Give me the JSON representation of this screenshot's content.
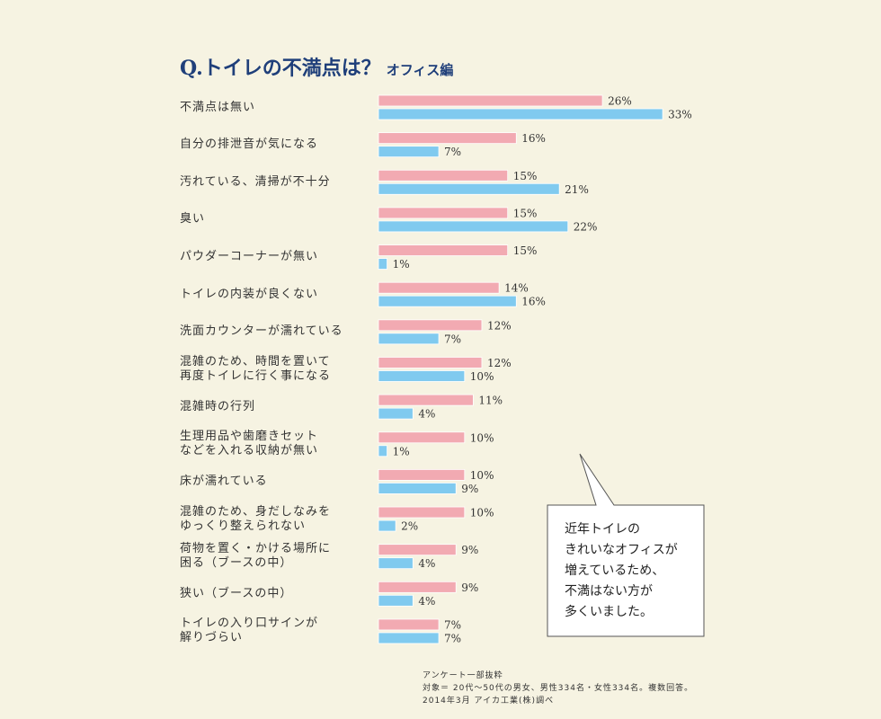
{
  "chart_data": {
    "type": "bar",
    "orientation": "horizontal",
    "title": "Q.トイレの不満点は？",
    "subtitle": "オフィス編",
    "categories": [
      "不満点は無い",
      "自分の排泄音が気になる",
      "汚れている、清掃が不十分",
      "臭い",
      "パウダーコーナーが無い",
      "トイレの内装が良くない",
      "洗面カウンターが濡れている",
      "混雑のため、時間を置いて\n再度トイレに行く事になる",
      "混雑時の行列",
      "生理用品や歯磨きセット\nなどを入れる収納が無い",
      "床が濡れている",
      "混雑のため、身だしなみを\nゆっくり整えられない",
      "荷物を置く・かける場所に\n困る（ブースの中）",
      "狭い（ブースの中）",
      "トイレの入り口サインが\n解りづらい"
    ],
    "series": [
      {
        "color": "#f2aab2",
        "values": [
          26,
          16,
          15,
          15,
          15,
          14,
          12,
          12,
          11,
          10,
          10,
          10,
          9,
          9,
          7
        ],
        "value_labels": [
          "26%",
          "16%",
          "15%",
          "15%",
          "15%",
          "14%",
          "12%",
          "12%",
          "11%",
          "10%",
          "10%",
          "10%",
          "9%",
          "9%",
          "7%"
        ]
      },
      {
        "color": "#80caef",
        "values": [
          33,
          7,
          21,
          22,
          1,
          16,
          7,
          10,
          4,
          1,
          9,
          2,
          4,
          4,
          7
        ],
        "value_labels": [
          "33%",
          "7%",
          "21%",
          "22%",
          "1%",
          "16%",
          "7%",
          "10%",
          "4%",
          "1%",
          "9%",
          "2%",
          "4%",
          "4%",
          "7%"
        ]
      }
    ],
    "annotation": "近年トイレの\nきれいなオフィスが\n増えているため、\n不満はない方が\n多くいました。",
    "footnotes": [
      "アンケート一部抜粋",
      "対象＝ 20代～50代の男女、男性334名・女性334名。複数回答。",
      "2014年3月 アイカ工業(株)調べ"
    ]
  }
}
